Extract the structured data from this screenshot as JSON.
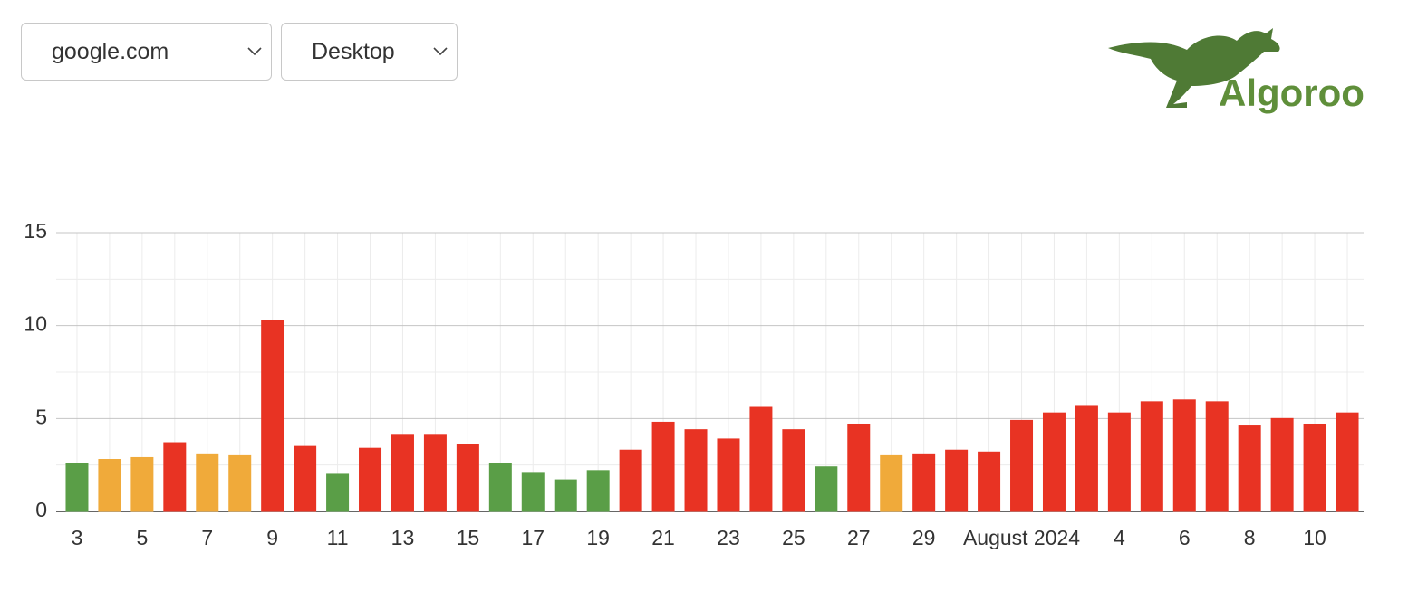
{
  "controls": {
    "site_select": "google.com",
    "device_select": "Desktop"
  },
  "logo": {
    "text": "Algoroo"
  },
  "chart_data": {
    "type": "bar",
    "categories": [
      "3",
      null,
      "5",
      null,
      "7",
      null,
      "9",
      null,
      "11",
      null,
      "13",
      null,
      "15",
      null,
      "17",
      null,
      "19",
      null,
      "21",
      null,
      "23",
      null,
      "25",
      null,
      "27",
      null,
      "29",
      null,
      null,
      "August 2024",
      null,
      null,
      "4",
      null,
      "6",
      null,
      "8",
      null,
      "10",
      null
    ],
    "values": [
      2.6,
      2.8,
      2.9,
      3.7,
      3.1,
      3.0,
      10.3,
      3.5,
      2.0,
      3.4,
      4.1,
      4.1,
      3.6,
      2.6,
      2.1,
      1.7,
      2.2,
      3.3,
      4.8,
      4.4,
      3.9,
      5.6,
      4.4,
      2.4,
      4.7,
      3.0,
      3.1,
      3.3,
      3.2,
      4.9,
      5.3,
      5.7,
      5.3,
      5.9,
      6.0,
      5.9,
      4.6,
      5.0,
      4.7,
      5.3
    ],
    "colors": [
      "#5a9e47",
      "#f0aa3a",
      "#f0aa3a",
      "#e83323",
      "#f0aa3a",
      "#f0aa3a",
      "#e83323",
      "#e83323",
      "#5a9e47",
      "#e83323",
      "#e83323",
      "#e83323",
      "#e83323",
      "#5a9e47",
      "#5a9e47",
      "#5a9e47",
      "#5a9e47",
      "#e83323",
      "#e83323",
      "#e83323",
      "#e83323",
      "#e83323",
      "#e83323",
      "#5a9e47",
      "#e83323",
      "#f0aa3a",
      "#e83323",
      "#e83323",
      "#e83323",
      "#e83323",
      "#e83323",
      "#e83323",
      "#e83323",
      "#e83323",
      "#e83323",
      "#e83323",
      "#e83323",
      "#e83323",
      "#e83323",
      "#e83323"
    ],
    "ylim": [
      0,
      15
    ],
    "yticks": [
      0,
      5,
      10,
      15
    ],
    "minor_yticks": [
      2.5,
      7.5,
      12.5
    ],
    "grid": true
  }
}
